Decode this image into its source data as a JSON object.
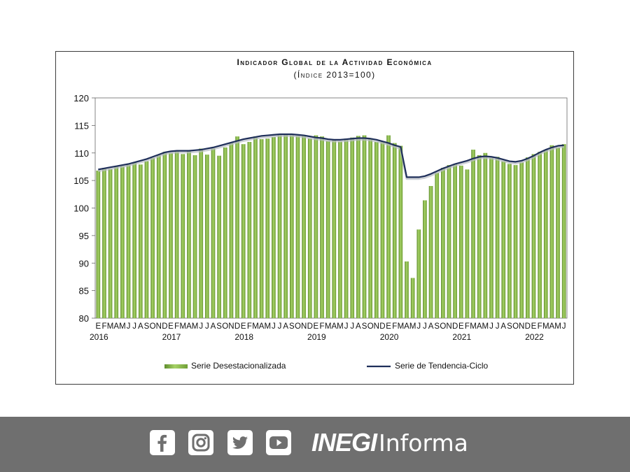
{
  "chart_data": {
    "type": "bar+line",
    "title": "Indicador Global de la Actividad Económica",
    "subtitle": "(Índice 2013=100)",
    "ylim": [
      80,
      120
    ],
    "yticks": [
      80,
      85,
      90,
      95,
      100,
      105,
      110,
      115,
      120
    ],
    "month_labels": [
      "E",
      "F",
      "M",
      "A",
      "M",
      "J",
      "J",
      "A",
      "S",
      "O",
      "N",
      "D"
    ],
    "years": [
      "2016",
      "2017",
      "2018",
      "2019",
      "2020",
      "2021",
      "2022"
    ],
    "start": "2016-01",
    "end": "2022-06",
    "series": [
      {
        "name": "Serie Desestacionalizada",
        "type": "bar",
        "color": "#8dbe4e",
        "values": [
          106.8,
          107.3,
          107.1,
          107.6,
          107.6,
          107.9,
          108.3,
          107.9,
          108.5,
          109.1,
          109.6,
          110.2,
          110.0,
          110.3,
          109.8,
          110.3,
          109.6,
          110.8,
          109.7,
          110.8,
          109.5,
          111.0,
          111.8,
          113.0,
          111.6,
          112.0,
          113.0,
          112.5,
          112.6,
          112.9,
          113.2,
          113.4,
          113.2,
          113.1,
          113.2,
          112.6,
          113.2,
          113.0,
          112.2,
          112.5,
          112.1,
          112.6,
          112.8,
          113.1,
          113.2,
          112.7,
          112.0,
          112.1,
          113.2,
          111.8,
          111.3,
          90.3,
          87.3,
          96.1,
          101.4,
          104.0,
          106.4,
          107.3,
          107.8,
          108.0,
          107.7,
          107.0,
          110.6,
          109.6,
          110.0,
          109.1,
          109.3,
          108.5,
          108.0,
          107.8,
          108.3,
          109.2,
          109.8,
          110.2,
          110.6,
          111.4,
          111.0,
          111.6
        ]
      },
      {
        "name": "Serie de Tendencia-Ciclo",
        "type": "line",
        "color": "#1f2f5a",
        "values": [
          107.0,
          107.2,
          107.4,
          107.6,
          107.8,
          108.0,
          108.3,
          108.6,
          108.9,
          109.3,
          109.7,
          110.1,
          110.3,
          110.4,
          110.4,
          110.4,
          110.5,
          110.6,
          110.8,
          111.0,
          111.3,
          111.6,
          111.9,
          112.2,
          112.5,
          112.7,
          112.9,
          113.1,
          113.2,
          113.3,
          113.4,
          113.4,
          113.4,
          113.3,
          113.2,
          113.0,
          112.8,
          112.7,
          112.5,
          112.4,
          112.4,
          112.5,
          112.6,
          112.7,
          112.7,
          112.6,
          112.4,
          112.1,
          111.8,
          111.4,
          111.1,
          105.6,
          105.6,
          105.6,
          105.8,
          106.2,
          106.7,
          107.2,
          107.6,
          108.0,
          108.3,
          108.6,
          109.0,
          109.3,
          109.4,
          109.3,
          109.1,
          108.8,
          108.5,
          108.4,
          108.6,
          109.0,
          109.5,
          110.1,
          110.6,
          111.0,
          111.3,
          111.4
        ]
      }
    ],
    "legend": {
      "position": "bottom"
    }
  },
  "social_icons": [
    "facebook-icon",
    "instagram-icon",
    "twitter-icon",
    "youtube-icon"
  ],
  "brand": {
    "inegi": "INEGI",
    "informa": "Informa"
  }
}
